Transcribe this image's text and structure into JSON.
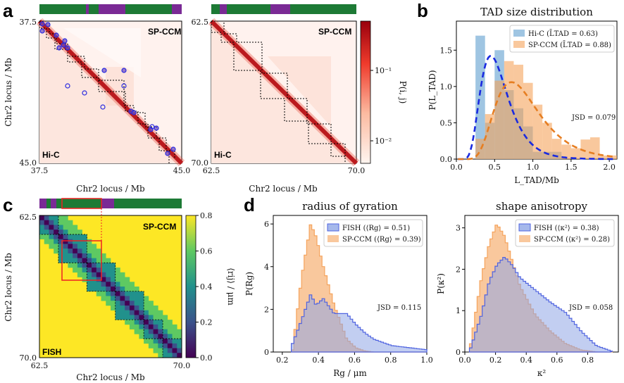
{
  "panels": {
    "a": "a",
    "b": "b",
    "c": "c",
    "d": "d"
  },
  "colors": {
    "green": "#1d7a35",
    "purple": "#7a2a95",
    "hic_blue": "#7fb2d8",
    "sp_orange": "#f5a35c",
    "fish_blue": "#4f63e0",
    "dash_blue": "#1a2ae0",
    "dash_orange": "#e67e22"
  },
  "panel_a": {
    "left": {
      "top_label": "SP-CCM",
      "bottom_label": "Hi-C",
      "y_top": "37.5",
      "y_bottom": "45.0",
      "x_left": "37.5",
      "x_right": "45.0"
    },
    "right": {
      "top_label": "SP-CCM",
      "bottom_label": "Hi-C",
      "y_top": "62.5",
      "y_bottom": "70.0",
      "x_left": "62.5",
      "x_right": "70.0"
    },
    "ylabel": "Chr2 locus / Mb",
    "xlabel": "Chr2 locus / Mb",
    "colorbar": {
      "label": "P(i, j)",
      "ticks": [
        "10⁻¹",
        "10⁻²"
      ]
    }
  },
  "panel_c": {
    "top_label": "SP-CCM",
    "bottom_label": "FISH",
    "y_top": "62.5",
    "y_bottom": "70.0",
    "x_left": "62.5",
    "x_right": "70.0",
    "ylabel": "Chr2 locus / Mb",
    "xlabel": "Chr2 locus / Mb",
    "colorbar": {
      "label": "⟨rij⟩ / μm",
      "ticks": [
        "0.0",
        "0.2",
        "0.4",
        "0.6",
        "0.8"
      ]
    }
  },
  "chart_data": [
    {
      "id": "b",
      "type": "bar",
      "title": "TAD size distribution",
      "xlabel": "L_TAD/Mb",
      "ylabel": "P(L_TAD)",
      "xlim": [
        0,
        2.1
      ],
      "ylim": [
        0,
        1.9
      ],
      "xticks": [
        "0.0",
        "0.5",
        "1.0",
        "1.5",
        "2.0"
      ],
      "yticks": [
        "0.0",
        "0.5",
        "1.0",
        "1.5"
      ],
      "bin_edges": [
        0.25,
        0.375,
        0.5,
        0.625,
        0.75,
        0.875,
        1.0,
        1.125,
        1.25,
        1.375,
        1.5,
        1.625,
        1.75,
        1.875,
        2.0,
        2.125
      ],
      "series": [
        {
          "name": "Hi-C (L̄TAD = 0.63)",
          "values": [
            1.7,
            0.5,
            1.5,
            0.95,
            0.7,
            0.45,
            0.1,
            0.1,
            0.1,
            0.0,
            0.0,
            0.0,
            0.0,
            0.0,
            0.0
          ]
        },
        {
          "name": "SP-CCM (L̄TAD = 0.88)",
          "values": [
            0.28,
            0.62,
            1.08,
            1.35,
            1.3,
            1.05,
            0.75,
            0.5,
            0.28,
            0.2,
            0.15,
            0.27,
            0.3,
            0.05,
            0.05
          ]
        }
      ],
      "fits": [
        {
          "name": "Hi-C fit",
          "mode": 0.45,
          "peak": 1.42
        },
        {
          "name": "SP-CCM fit",
          "mode": 0.72,
          "peak": 1.06
        }
      ],
      "annotation": "JSD = 0.079"
    },
    {
      "id": "d-left",
      "type": "area",
      "title": "radius of gyration",
      "xlabel": "Rg / μm",
      "ylabel": "P(Rg)",
      "xlim": [
        0.15,
        1.0
      ],
      "ylim": [
        0,
        6.4
      ],
      "xticks": [
        "0.2",
        "0.4",
        "0.6",
        "0.8",
        "1.0"
      ],
      "yticks": [
        "0",
        "2",
        "4",
        "6"
      ],
      "x": [
        0.25,
        0.3,
        0.35,
        0.38,
        0.42,
        0.48,
        0.55,
        0.6,
        0.65,
        0.7,
        0.8,
        0.9,
        1.0
      ],
      "series": [
        {
          "name": "FISH (⟨Rg⟩ = 0.51)",
          "values": [
            0.4,
            1.5,
            2.7,
            2.2,
            2.5,
            1.8,
            1.8,
            1.3,
            0.9,
            0.6,
            0.3,
            0.2,
            0.1
          ]
        },
        {
          "name": "SP-CCM (⟨Rg⟩ = 0.39)",
          "values": [
            0.1,
            3.5,
            6.0,
            5.4,
            4.0,
            2.2,
            0.6,
            0.2,
            0.05,
            0.0,
            0.0,
            0.0,
            0.0
          ]
        }
      ],
      "annotation": "JSD = 0.115"
    },
    {
      "id": "d-right",
      "type": "area",
      "title": "shape anisotropy",
      "xlabel": "κ²",
      "ylabel": "P(κ²)",
      "xlim": [
        0,
        1.0
      ],
      "ylim": [
        0,
        3.3
      ],
      "xticks": [
        "0.0",
        "0.2",
        "0.4",
        "0.6",
        "0.8"
      ],
      "yticks": [
        "0",
        "1",
        "2",
        "3"
      ],
      "x": [
        0.03,
        0.1,
        0.15,
        0.2,
        0.25,
        0.3,
        0.35,
        0.45,
        0.55,
        0.65,
        0.75,
        0.85,
        0.95
      ],
      "series": [
        {
          "name": "FISH (⟨κ²⟩ = 0.38)",
          "values": [
            0.1,
            0.9,
            1.7,
            2.1,
            2.3,
            2.1,
            1.8,
            1.5,
            1.2,
            0.95,
            0.5,
            0.15,
            0.02
          ]
        },
        {
          "name": "SP-CCM (⟨κ²⟩ = 0.28)",
          "values": [
            0.2,
            1.8,
            2.6,
            3.1,
            2.8,
            2.2,
            1.6,
            0.9,
            0.5,
            0.2,
            0.05,
            0.0,
            0.0
          ]
        }
      ],
      "annotation": "JSD = 0.058"
    }
  ]
}
